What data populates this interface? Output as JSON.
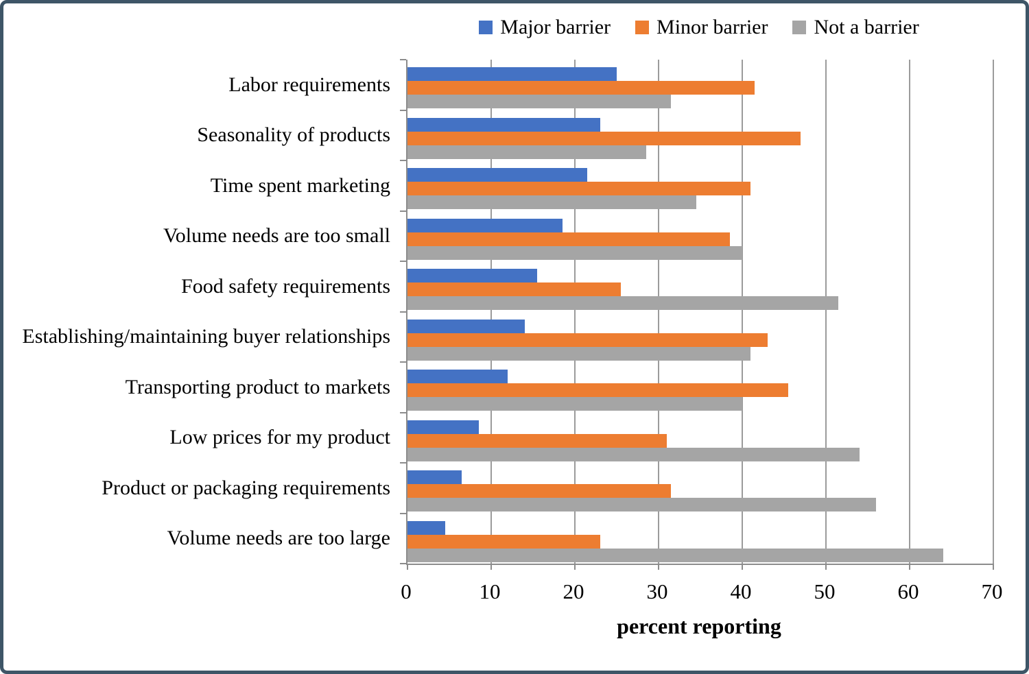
{
  "figure": {
    "background": "#FFFFFF",
    "border_color": "#3E5567",
    "gridline_color": "#9B9B9B",
    "axis_color": "#8C8C8C"
  },
  "chart_data": {
    "type": "bar",
    "orientation": "horizontal",
    "title": "",
    "xlabel": "percent reporting",
    "ylabel": "",
    "xlim": [
      0,
      70
    ],
    "xticks": [
      0,
      10,
      20,
      30,
      40,
      50,
      60,
      70
    ],
    "grid": true,
    "legend_position": "top",
    "categories": [
      "Labor requirements",
      "Seasonality of products",
      "Time spent marketing",
      "Volume needs are too small",
      "Food safety requirements",
      "Establishing/maintaining buyer relationships",
      "Transporting product to markets",
      "Low prices for my product",
      "Product or packaging requirements",
      "Volume needs are too large"
    ],
    "series": [
      {
        "name": "Major barrier",
        "color": "#4472C4",
        "values": [
          25,
          23,
          21.5,
          18.5,
          15.5,
          14,
          12,
          8.5,
          6.5,
          4.5
        ]
      },
      {
        "name": "Minor barrier",
        "color": "#ED7D31",
        "values": [
          41.5,
          47,
          41,
          38.5,
          25.5,
          43,
          45.5,
          31,
          31.5,
          23
        ]
      },
      {
        "name": "Not a barrier",
        "color": "#A5A5A5",
        "values": [
          31.5,
          28.5,
          34.5,
          40,
          51.5,
          41,
          40,
          54,
          56,
          64
        ]
      }
    ]
  }
}
